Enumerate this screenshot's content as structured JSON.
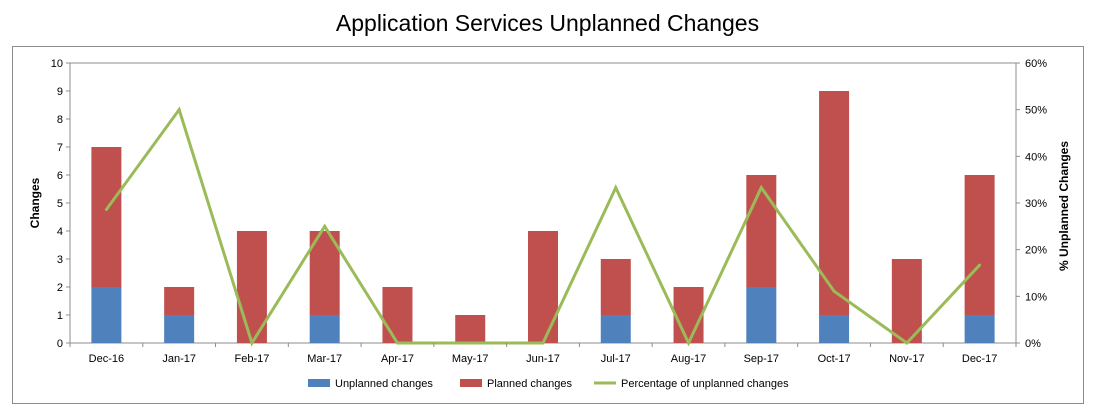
{
  "chart_data": {
    "type": "bar",
    "title": "Application Services Unplanned Changes",
    "categories": [
      "Dec-16",
      "Jan-17",
      "Feb-17",
      "Mar-17",
      "Apr-17",
      "May-17",
      "Jun-17",
      "Jul-17",
      "Aug-17",
      "Sep-17",
      "Oct-17",
      "Nov-17",
      "Dec-17"
    ],
    "series": [
      {
        "name": "Unplanned changes",
        "kind": "stacked-bar",
        "axis": "left",
        "color": "#4f81bd",
        "values": [
          2,
          1,
          0,
          1,
          0,
          0,
          0,
          1,
          0,
          2,
          1,
          0,
          1
        ]
      },
      {
        "name": "Planned changes",
        "kind": "stacked-bar",
        "axis": "left",
        "color": "#c0504d",
        "values": [
          5,
          1,
          4,
          3,
          2,
          1,
          4,
          2,
          2,
          4,
          8,
          3,
          5
        ]
      },
      {
        "name": "Percentage of unplanned changes",
        "kind": "line",
        "axis": "right",
        "color": "#9bbb59",
        "values": [
          28.6,
          50,
          0,
          25,
          0,
          0,
          0,
          33.3,
          0,
          33.3,
          11.1,
          0,
          16.7
        ]
      }
    ],
    "ylabel": "Changes",
    "ylim": [
      0,
      10
    ],
    "yticks": [
      "0",
      "1",
      "2",
      "3",
      "4",
      "5",
      "6",
      "7",
      "8",
      "9",
      "10"
    ],
    "y2label": "% Unplanned Changes",
    "y2lim": [
      0,
      60
    ],
    "y2ticks": [
      "0%",
      "10%",
      "20%",
      "30%",
      "40%",
      "50%",
      "60%"
    ],
    "grid": false,
    "legend": "bottom"
  }
}
